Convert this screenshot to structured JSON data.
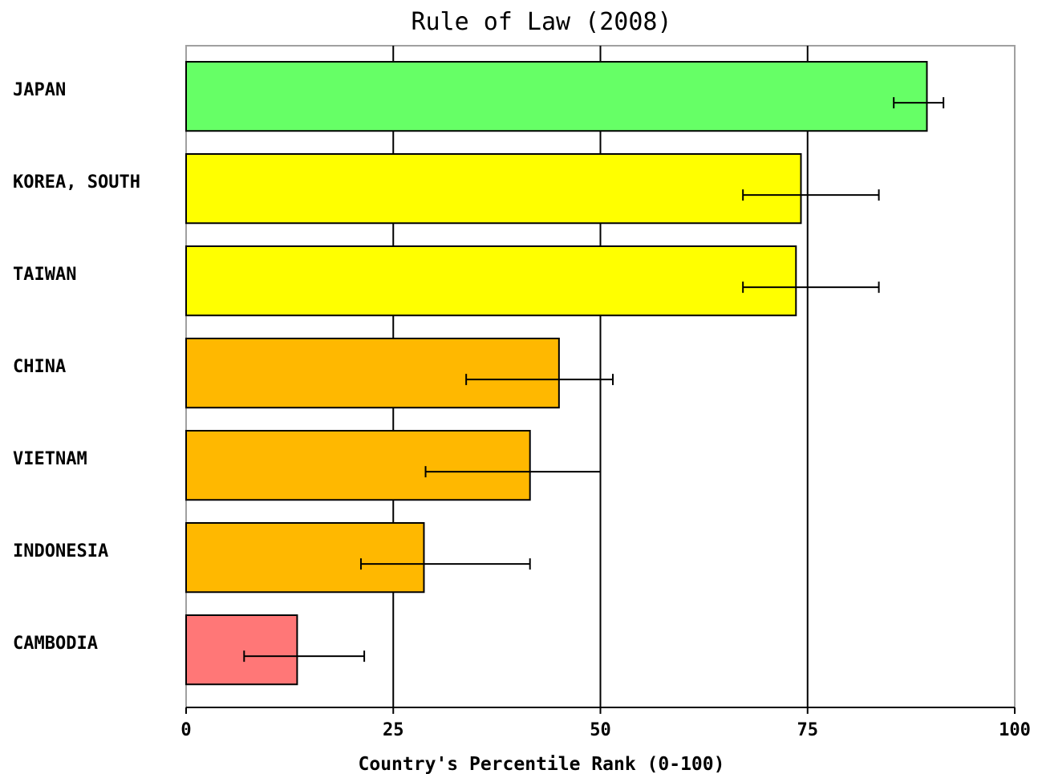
{
  "chart_data": {
    "type": "bar",
    "orientation": "horizontal",
    "title": "Rule of Law (2008)",
    "xlabel": "Country's Percentile Rank (0-100)",
    "ylabel": "",
    "xlim": [
      0,
      100
    ],
    "xticks": [
      0,
      25,
      50,
      75,
      100
    ],
    "xtick_labels": [
      "0",
      "25",
      "50",
      "75",
      "100"
    ],
    "grid": "vertical",
    "categories": [
      "JAPAN",
      "KOREA, SOUTH",
      "TAIWAN",
      "CHINA",
      "VIETNAM",
      "INDONESIA",
      "CAMBODIA"
    ],
    "values": [
      89.4,
      74.2,
      73.6,
      45.0,
      41.5,
      28.7,
      13.4
    ],
    "error_low": [
      85.4,
      67.2,
      67.2,
      33.8,
      28.9,
      21.1,
      7.0
    ],
    "error_high": [
      91.4,
      83.6,
      83.6,
      51.5,
      50.0,
      41.5,
      21.5
    ],
    "colors": [
      "#66ff66",
      "#ffff00",
      "#ffff00",
      "#ffb800",
      "#ffb800",
      "#ffb800",
      "#ff7777"
    ]
  }
}
